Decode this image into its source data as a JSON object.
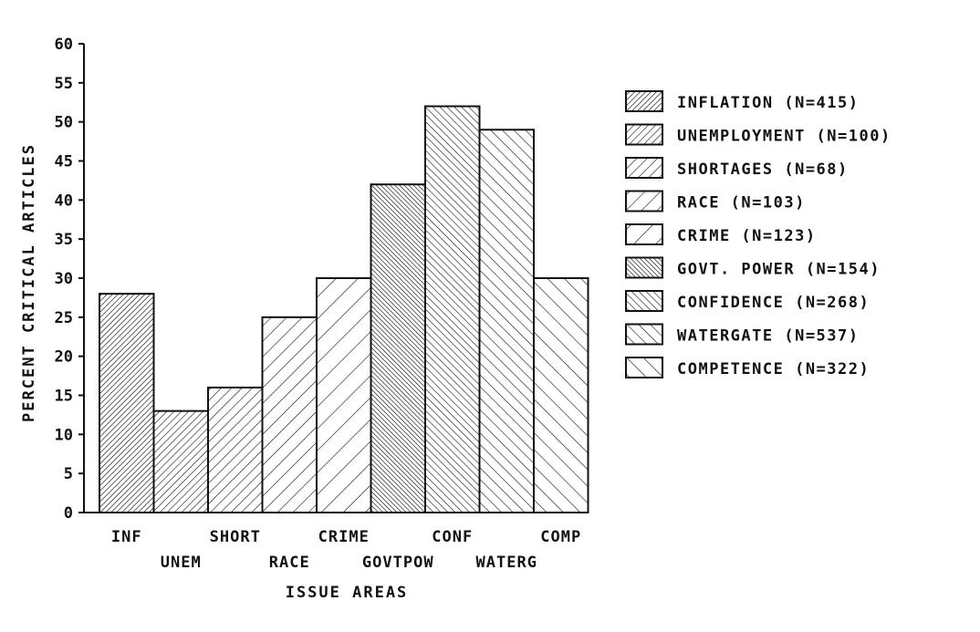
{
  "chart_data": {
    "type": "bar",
    "xlabel": "ISSUE AREAS",
    "ylabel": "PERCENT CRITICAL ARTICLES",
    "ylim": [
      0,
      60
    ],
    "yticks": [
      "0",
      "5",
      "10",
      "15",
      "20",
      "25",
      "30",
      "35",
      "40",
      "45",
      "50",
      "55",
      "60"
    ],
    "categories": [
      "INF",
      "UNEM",
      "SHORT",
      "RACE",
      "CRIME",
      "GOVTPOW",
      "CONF",
      "WATERG",
      "COMP"
    ],
    "values": [
      28,
      13,
      16,
      25,
      30,
      42,
      52,
      49,
      30
    ],
    "legend": [
      "INFLATION (N=415)",
      "UNEMPLOYMENT (N=100)",
      "SHORTAGES (N=68)",
      "RACE (N=103)",
      "CRIME (N=123)",
      "GOVT. POWER (N=154)",
      "CONFIDENCE (N=268)",
      "WATERGATE (N=537)",
      "COMPETENCE (N=322)"
    ],
    "legend_position": "right",
    "grid": false,
    "colors": {
      "ink": "#111111",
      "background": "#ffffff"
    }
  }
}
